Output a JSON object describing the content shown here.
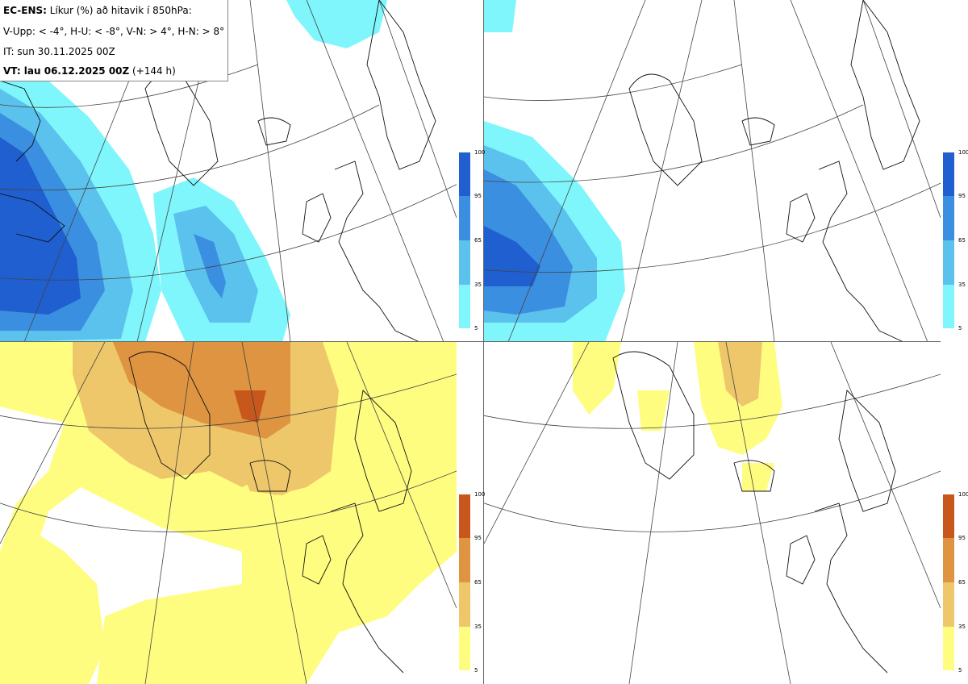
{
  "legend": {
    "title_bold": "EC-ENS:",
    "title_rest": " Líkur (%) að hitavik í 850hPa:",
    "line2": "V-Upp: < -4°, H-U: < -8°, V-N: > 4°, H-N: > 8°",
    "line3": "IT: sun 30.11.2025 00Z",
    "line4_bold": "VT: lau 06.12.2025 00Z",
    "line4_rest": " (+144 h)"
  },
  "colorbars": {
    "cold": {
      "ticks": [
        "100",
        "95",
        "65",
        "35",
        "5"
      ],
      "colors": [
        "#1f5fd0",
        "#3b8fe0",
        "#5bc2ee",
        "#7ff6fb"
      ]
    },
    "warm": {
      "ticks": [
        "100",
        "95",
        "65",
        "35",
        "5"
      ],
      "colors": [
        "#c8571c",
        "#de9440",
        "#eec76a",
        "#fefd80"
      ]
    }
  },
  "panels": [
    {
      "id": "top-left",
      "scheme": "cold"
    },
    {
      "id": "top-right",
      "scheme": "cold"
    },
    {
      "id": "bottom-left",
      "scheme": "warm"
    },
    {
      "id": "bottom-right",
      "scheme": "warm"
    }
  ]
}
